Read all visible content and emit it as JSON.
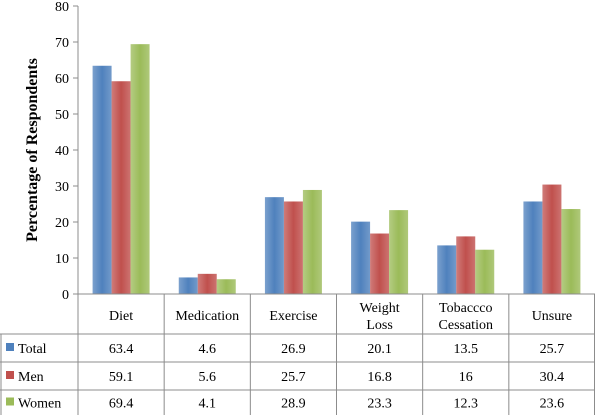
{
  "chart_data": {
    "type": "bar",
    "title": "",
    "xlabel": "",
    "ylabel": "Percentage of Respondents",
    "ylim": [
      0,
      80
    ],
    "yticks": [
      0,
      10,
      20,
      30,
      40,
      50,
      60,
      70,
      80
    ],
    "grid": false,
    "legend": "left of data table",
    "categories": [
      [
        "Diet"
      ],
      [
        "Medication"
      ],
      [
        "Exercise"
      ],
      [
        "Weight",
        "Loss"
      ],
      [
        "Tobaccco",
        "Cessation"
      ],
      [
        "Unsure"
      ]
    ],
    "series": [
      {
        "name": "Total",
        "color": "#4F81BD",
        "values": [
          63.4,
          4.6,
          26.9,
          20.1,
          13.5,
          25.7
        ],
        "labels": [
          "63.4",
          "4.6",
          "26.9",
          "20.1",
          "13.5",
          "25.7"
        ]
      },
      {
        "name": "Men",
        "color": "#C0504D",
        "values": [
          59.1,
          5.6,
          25.7,
          16.8,
          16,
          30.4
        ],
        "labels": [
          "59.1",
          "5.6",
          "25.7",
          "16.8",
          "16",
          "30.4"
        ]
      },
      {
        "name": "Women",
        "color": "#9BBB59",
        "values": [
          69.4,
          4.1,
          28.9,
          23.3,
          12.3,
          23.6
        ],
        "labels": [
          "69.4",
          "4.1",
          "28.9",
          "23.3",
          "12.3",
          "23.6"
        ]
      }
    ]
  }
}
